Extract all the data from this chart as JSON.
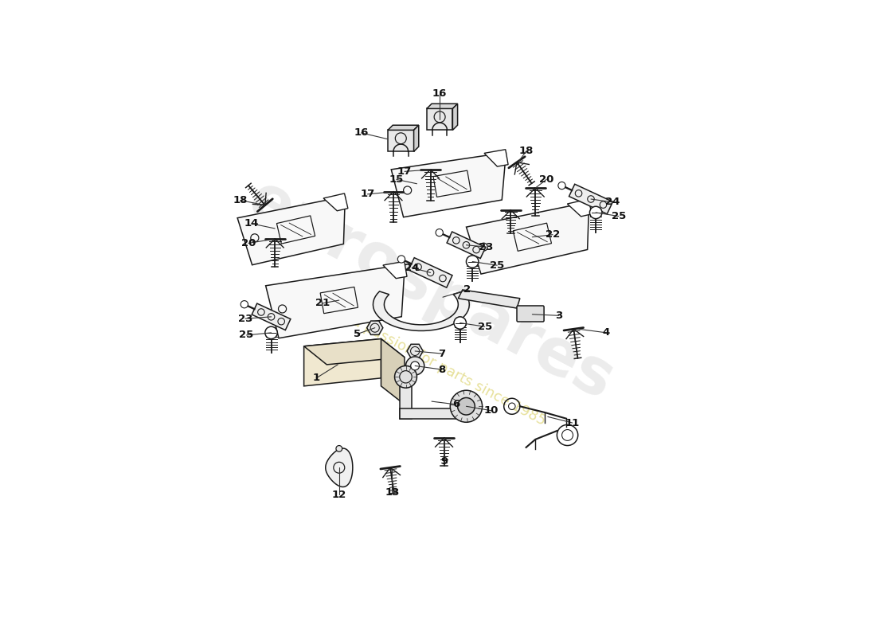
{
  "bg_color": "#ffffff",
  "lc": "#1a1a1a",
  "lw": 1.1,
  "fs": 9.5,
  "watermark1": "eurospares",
  "watermark2": "a passion for parts since 1985",
  "wm1_color": "#c0c0c0",
  "wm2_color": "#d4c84a",
  "wm1_alpha": 0.3,
  "wm2_alpha": 0.55,
  "wm1_size": 58,
  "wm2_size": 13,
  "wm_rotation": -28
}
